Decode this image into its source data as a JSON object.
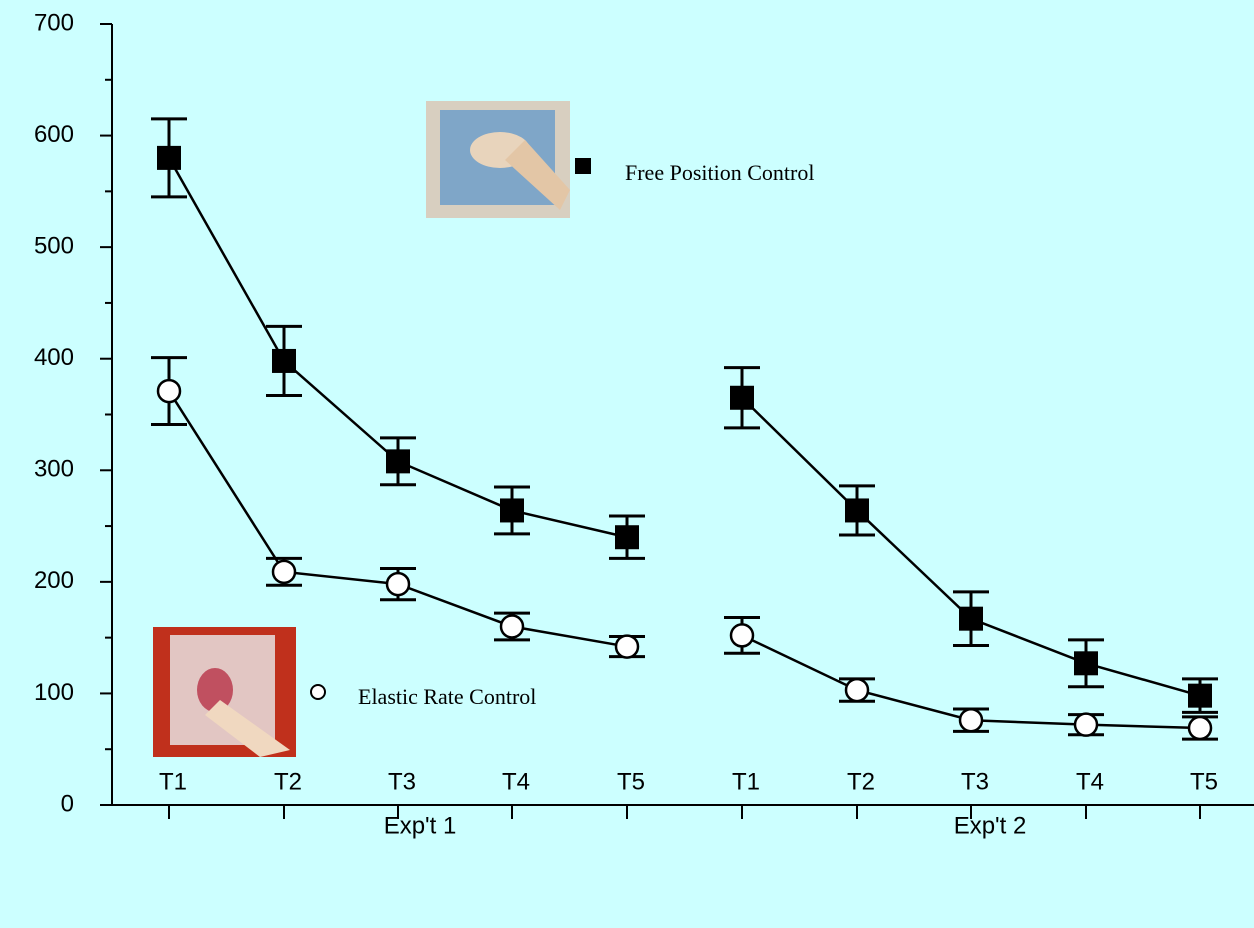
{
  "chart_data": {
    "type": "line",
    "groups": [
      {
        "name": "Exp't 1",
        "categories": [
          "T1",
          "T2",
          "T3",
          "T4",
          "T5"
        ]
      },
      {
        "name": "Exp't 2",
        "categories": [
          "T1",
          "T2",
          "T3",
          "T4",
          "T5"
        ]
      }
    ],
    "series": [
      {
        "name": "Free Position Control",
        "marker": "square",
        "color": "#000000",
        "values": [
          [
            580,
            398,
            308,
            264,
            240
          ],
          [
            365,
            264,
            167,
            127,
            98
          ]
        ],
        "errors": [
          [
            35,
            31,
            21,
            21,
            19
          ],
          [
            27,
            22,
            24,
            21,
            15
          ]
        ]
      },
      {
        "name": "Elastic Rate Control",
        "marker": "circle",
        "color": "#000000",
        "values": [
          [
            371,
            209,
            198,
            160,
            142
          ],
          [
            152,
            103,
            76,
            72,
            69
          ]
        ],
        "errors": [
          [
            30,
            12,
            14,
            12,
            9
          ],
          [
            16,
            10,
            10,
            9,
            10
          ]
        ]
      }
    ],
    "ylim": [
      0,
      700
    ],
    "yticks": [
      0,
      100,
      200,
      300,
      400,
      500,
      600,
      700
    ]
  }
}
